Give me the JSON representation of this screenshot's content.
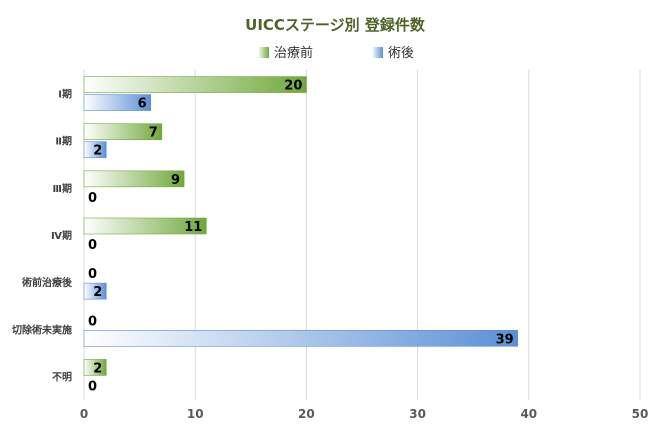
{
  "chart_data": {
    "type": "bar",
    "orientation": "horizontal",
    "title": "UICCステージ別 登録件数",
    "categories": [
      "Ⅰ期",
      "Ⅱ期",
      "Ⅲ期",
      "Ⅳ期",
      "術前治療後",
      "切除術未実施",
      "不明"
    ],
    "series": [
      {
        "name": "治療前",
        "values": [
          20,
          7,
          9,
          11,
          0,
          0,
          2
        ],
        "color": "#70a83b"
      },
      {
        "name": "術後",
        "values": [
          6,
          2,
          0,
          0,
          2,
          39,
          0
        ],
        "color": "#5b8fd6"
      }
    ],
    "xlim": [
      0,
      50
    ],
    "xticks": [
      0,
      10,
      20,
      30,
      40,
      50
    ],
    "grid": true,
    "legend_position": "top-center"
  }
}
